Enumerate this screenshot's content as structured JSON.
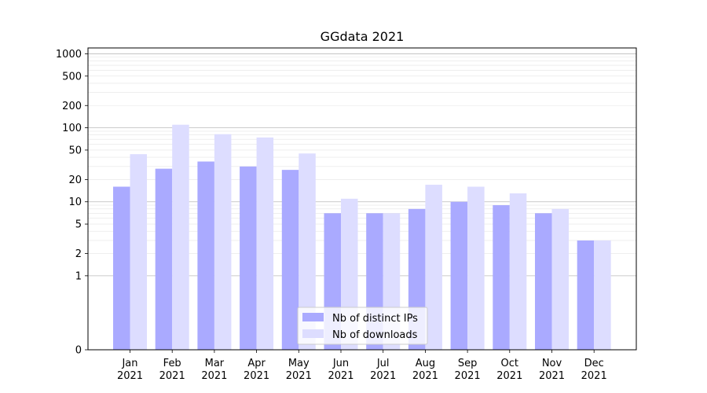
{
  "chart_data": {
    "type": "bar",
    "title": "GGdata 2021",
    "xlabel": "",
    "ylabel": "",
    "yscale": "symlog",
    "ylim": [
      0,
      1200
    ],
    "grid": true,
    "legend_position": "lower-center",
    "yticks": [
      {
        "value": 0,
        "label": "0"
      },
      {
        "value": 1,
        "label": "1"
      },
      {
        "value": 2,
        "label": "2"
      },
      {
        "value": 5,
        "label": "5"
      },
      {
        "value": 10,
        "label": "10"
      },
      {
        "value": 20,
        "label": "20"
      },
      {
        "value": 50,
        "label": "50"
      },
      {
        "value": 100,
        "label": "100"
      },
      {
        "value": 200,
        "label": "200"
      },
      {
        "value": 500,
        "label": "500"
      },
      {
        "value": 1000,
        "label": "1000"
      }
    ],
    "categories": [
      {
        "month": "Jan",
        "year": "2021"
      },
      {
        "month": "Feb",
        "year": "2021"
      },
      {
        "month": "Mar",
        "year": "2021"
      },
      {
        "month": "Apr",
        "year": "2021"
      },
      {
        "month": "May",
        "year": "2021"
      },
      {
        "month": "Jun",
        "year": "2021"
      },
      {
        "month": "Jul",
        "year": "2021"
      },
      {
        "month": "Aug",
        "year": "2021"
      },
      {
        "month": "Sep",
        "year": "2021"
      },
      {
        "month": "Oct",
        "year": "2021"
      },
      {
        "month": "Nov",
        "year": "2021"
      },
      {
        "month": "Dec",
        "year": "2021"
      }
    ],
    "series": [
      {
        "name": "Nb of distinct IPs",
        "color": "#aaaaff",
        "values": [
          16,
          28,
          35,
          30,
          27,
          7,
          7,
          8,
          10,
          9,
          7,
          3
        ]
      },
      {
        "name": "Nb of downloads",
        "color": "#ddddff",
        "values": [
          44,
          110,
          82,
          74,
          45,
          11,
          7,
          17,
          16,
          13,
          8,
          3
        ]
      }
    ]
  }
}
